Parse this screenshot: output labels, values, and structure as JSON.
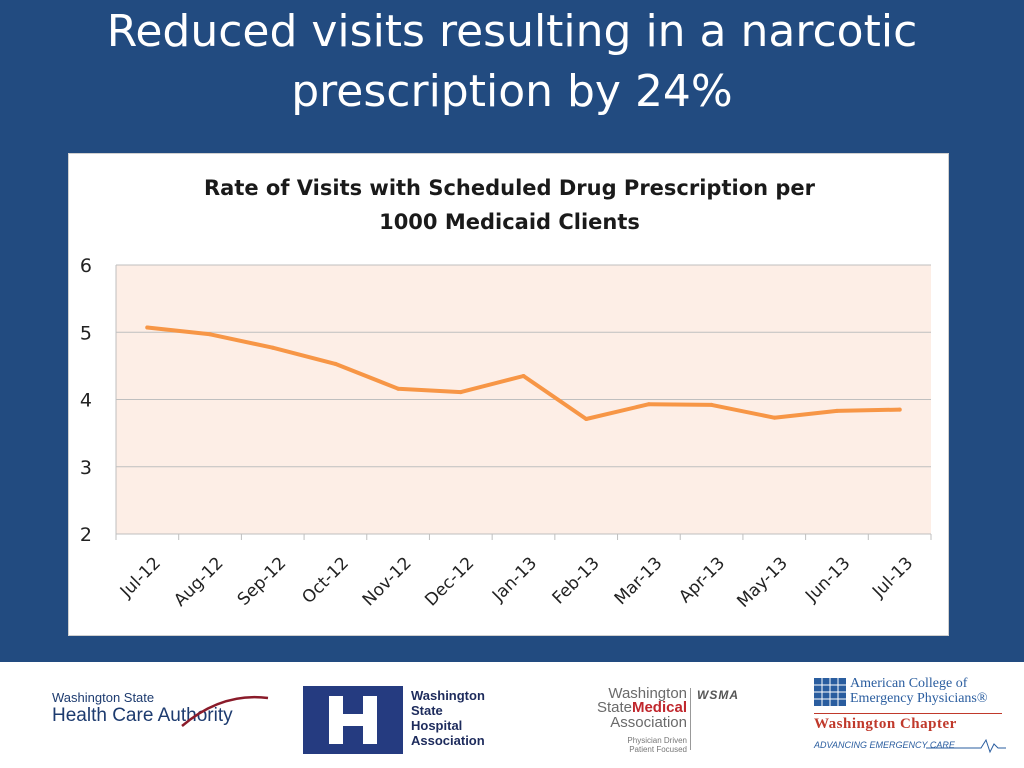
{
  "slide": {
    "title_line1": "Reduced visits resulting in a narcotic",
    "title_line2": "prescription by 24%",
    "background_color": "#224b80"
  },
  "chart_data": {
    "type": "line",
    "title_line1": "Rate of Visits with Scheduled Drug Prescription per",
    "title_line2": "1000 Medicaid Clients",
    "categories": [
      "Jul-12",
      "Aug-12",
      "Sep-12",
      "Oct-12",
      "Nov-12",
      "Dec-12",
      "Jan-13",
      "Feb-13",
      "Mar-13",
      "Apr-13",
      "May-13",
      "Jun-13",
      "Jul-13"
    ],
    "series": [
      {
        "values": [
          5.07,
          4.97,
          4.77,
          4.53,
          4.16,
          4.11,
          4.35,
          3.71,
          3.93,
          3.92,
          3.73,
          3.83,
          3.85
        ],
        "color": "#f79646"
      }
    ],
    "y_ticks": [
      2,
      3,
      4,
      5,
      6
    ],
    "ylim": [
      2,
      6
    ],
    "grid": true,
    "plot_background": "#fdeee6",
    "legend": "none"
  },
  "logos": {
    "hca": {
      "line1": "Washington State",
      "line2": "Health Care Authority"
    },
    "wsha": {
      "line1": "Washington",
      "line2": "State",
      "line3": "Hospital",
      "line4": "Association"
    },
    "wsma": {
      "line1": "Washington",
      "line2_a": "State",
      "line2_b": "Medical",
      "line3": "Association",
      "tag1": "Physician Driven",
      "tag2": "Patient Focused",
      "abbr": "WSMA"
    },
    "acep": {
      "line1": "American College of",
      "line2": "Emergency Physicians®",
      "chapter": "Washington Chapter",
      "tagline": "ADVANCING EMERGENCY CARE"
    }
  }
}
